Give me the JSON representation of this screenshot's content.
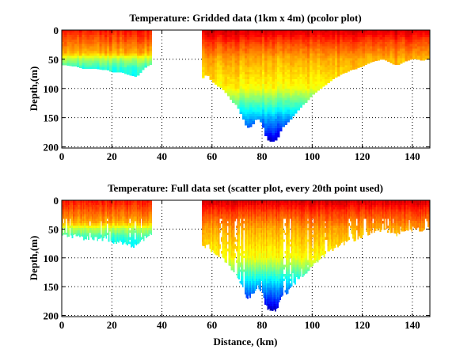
{
  "chart_data": [
    {
      "type": "heatmap",
      "title": "Temperature: Gridded data (1km x 4m) (pcolor plot)",
      "xlabel": "",
      "ylabel": "Depth,(m)",
      "xlim": [
        0,
        147
      ],
      "ylim": [
        0,
        202
      ],
      "y_reversed": true,
      "xticks": [
        "0",
        "20",
        "40",
        "60",
        "80",
        "100",
        "120",
        "140"
      ],
      "yticks": [
        "0",
        "50",
        "100",
        "150",
        "200"
      ],
      "grid": true,
      "colormap": "jet",
      "style": "gridded"
    },
    {
      "type": "scatter",
      "title": "Temperature: Full data set (scatter plot, every 20th point used)",
      "xlabel": "Distance, (km)",
      "ylabel": "Depth,(m)",
      "xlim": [
        0,
        147
      ],
      "ylim": [
        0,
        202
      ],
      "y_reversed": true,
      "xticks": [
        "0",
        "20",
        "40",
        "60",
        "80",
        "100",
        "120",
        "140"
      ],
      "yticks": [
        "0",
        "50",
        "100",
        "150",
        "200"
      ],
      "grid": true,
      "colormap": "jet",
      "style": "scatter"
    }
  ],
  "section_data": {
    "distance_km": [
      0,
      2,
      4,
      6,
      8,
      10,
      12,
      14,
      16,
      18,
      20,
      22,
      24,
      26,
      28,
      30,
      32,
      34,
      36,
      56,
      58,
      60,
      62,
      64,
      66,
      68,
      70,
      72,
      74,
      76,
      78,
      80,
      82,
      84,
      86,
      88,
      90,
      92,
      94,
      96,
      98,
      100,
      102,
      104,
      106,
      108,
      110,
      112,
      114,
      116,
      118,
      120,
      122,
      124,
      126,
      128,
      130,
      132,
      134,
      136,
      138,
      140,
      142,
      144,
      146,
      147
    ],
    "bottom_depth_m": [
      60,
      60,
      62,
      62,
      66,
      66,
      66,
      66,
      68,
      68,
      72,
      72,
      72,
      76,
      78,
      80,
      70,
      62,
      58,
      85,
      75,
      88,
      95,
      100,
      110,
      122,
      130,
      148,
      168,
      165,
      150,
      160,
      188,
      192,
      188,
      168,
      160,
      150,
      140,
      130,
      122,
      112,
      105,
      98,
      92,
      85,
      80,
      75,
      72,
      68,
      66,
      62,
      58,
      54,
      52,
      50,
      52,
      58,
      60,
      56,
      52,
      50,
      50,
      52,
      50,
      50
    ],
    "temperature_index_profile_left": {
      "depth_m": [
        0,
        20,
        40,
        50,
        65,
        80
      ],
      "value": [
        0.86,
        0.78,
        0.7,
        0.55,
        0.42,
        0.38
      ]
    },
    "temperature_index_profile_right": {
      "depth_m": [
        0,
        20,
        50,
        100,
        130,
        150,
        190,
        200
      ],
      "value": [
        0.92,
        0.82,
        0.71,
        0.62,
        0.43,
        0.3,
        0.08,
        0.05
      ]
    }
  }
}
